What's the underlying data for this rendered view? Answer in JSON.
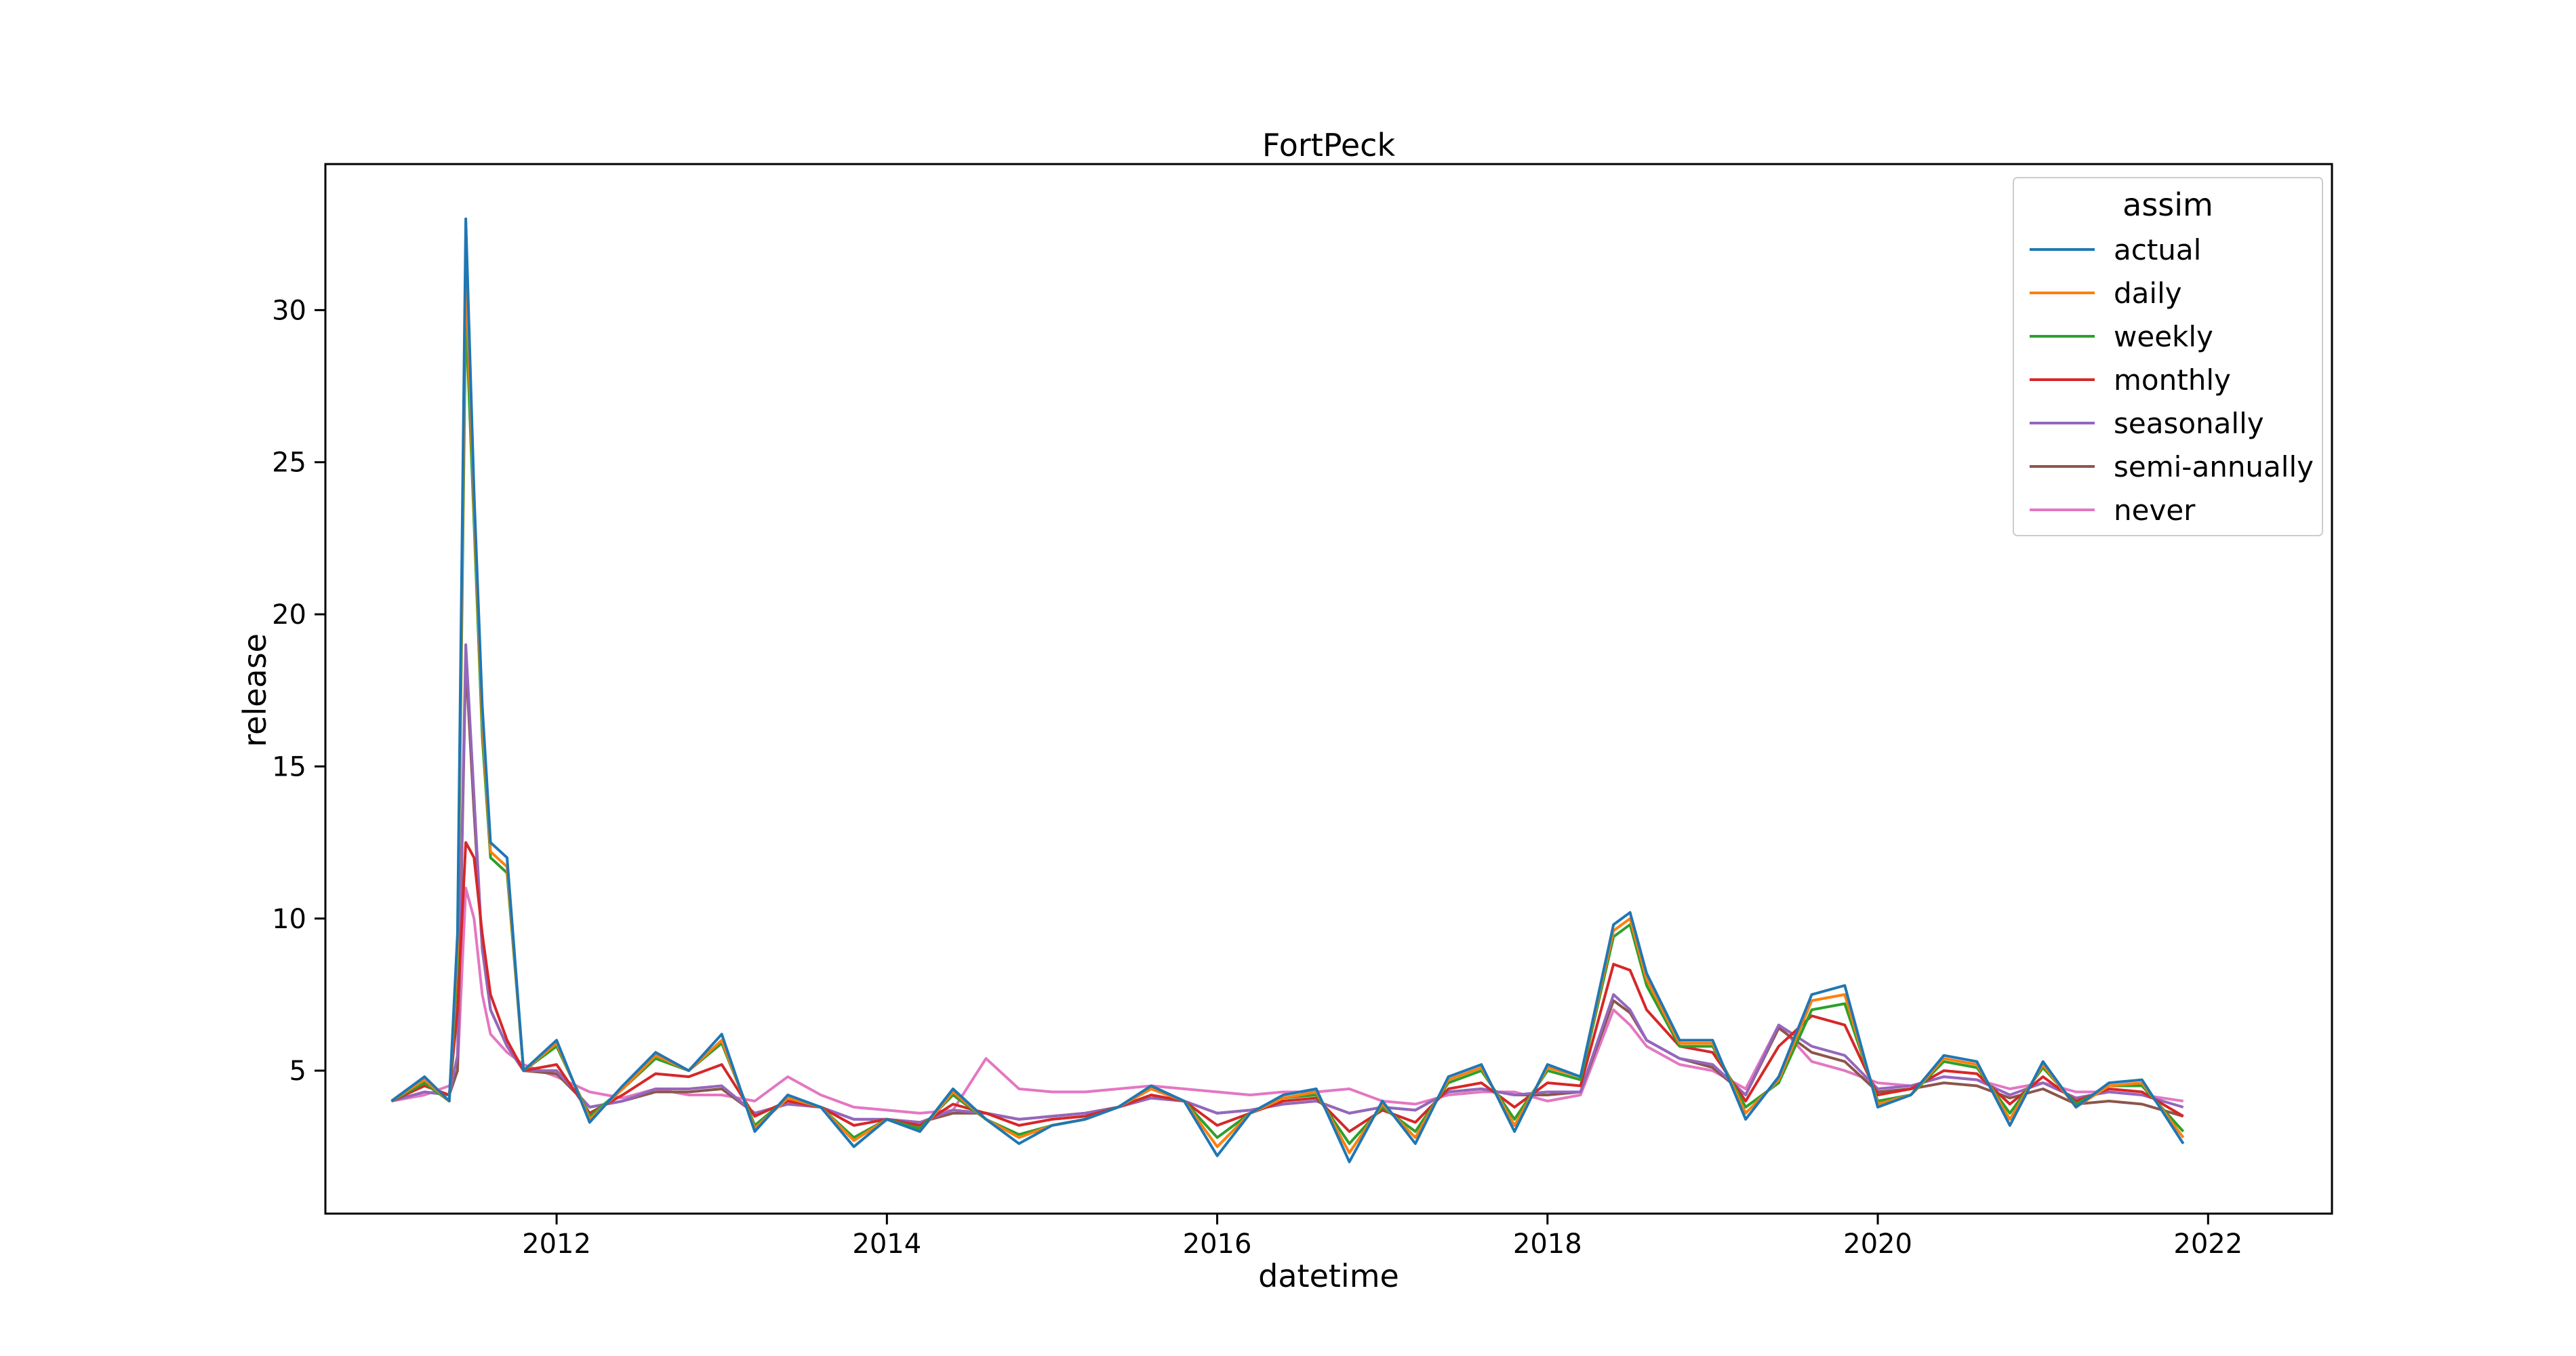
{
  "chart_data": {
    "type": "line",
    "title": "FortPeck",
    "xlabel": "datetime",
    "ylabel": "release",
    "xlim": [
      2010.6,
      2022.75
    ],
    "ylim": [
      0.3,
      34.8
    ],
    "x_ticks": [
      2012,
      2014,
      2016,
      2018,
      2020,
      2022
    ],
    "x_tick_labels": [
      "2012",
      "2014",
      "2016",
      "2018",
      "2020",
      "2022"
    ],
    "y_ticks": [
      5,
      10,
      15,
      20,
      25,
      30
    ],
    "y_tick_labels": [
      "5",
      "10",
      "15",
      "20",
      "25",
      "30"
    ],
    "grid": false,
    "legend": {
      "title": "assim",
      "position": "top-right"
    },
    "x": [
      2011.0,
      2011.2,
      2011.35,
      2011.4,
      2011.45,
      2011.5,
      2011.55,
      2011.6,
      2011.7,
      2011.8,
      2012.0,
      2012.2,
      2012.4,
      2012.6,
      2012.8,
      2013.0,
      2013.2,
      2013.4,
      2013.6,
      2013.8,
      2014.0,
      2014.2,
      2014.4,
      2014.6,
      2014.8,
      2015.0,
      2015.2,
      2015.4,
      2015.6,
      2015.8,
      2016.0,
      2016.2,
      2016.4,
      2016.6,
      2016.8,
      2017.0,
      2017.2,
      2017.4,
      2017.6,
      2017.8,
      2018.0,
      2018.2,
      2018.4,
      2018.5,
      2018.6,
      2018.8,
      2019.0,
      2019.2,
      2019.4,
      2019.6,
      2019.8,
      2020.0,
      2020.2,
      2020.4,
      2020.6,
      2020.8,
      2021.0,
      2021.2,
      2021.4,
      2021.6,
      2021.85
    ],
    "series": [
      {
        "name": "actual",
        "color": "#1f77b4",
        "values": [
          4.0,
          4.8,
          4.0,
          9.5,
          33.0,
          24.0,
          17.0,
          12.5,
          12.0,
          5.0,
          6.0,
          3.3,
          4.5,
          5.6,
          5.0,
          6.2,
          3.0,
          4.2,
          3.8,
          2.5,
          3.4,
          3.0,
          4.4,
          3.4,
          2.6,
          3.2,
          3.4,
          3.8,
          4.5,
          4.0,
          2.2,
          3.6,
          4.2,
          4.4,
          2.0,
          4.0,
          2.6,
          4.8,
          5.2,
          3.0,
          5.2,
          4.8,
          9.8,
          10.2,
          8.2,
          6.0,
          6.0,
          3.4,
          4.8,
          7.5,
          7.8,
          3.8,
          4.2,
          5.5,
          5.3,
          3.2,
          5.3,
          3.8,
          4.6,
          4.7,
          2.6
        ]
      },
      {
        "name": "daily",
        "color": "#ff7f0e",
        "values": [
          4.0,
          4.7,
          4.0,
          9.0,
          31.5,
          23.5,
          16.5,
          12.2,
          11.7,
          5.0,
          5.9,
          3.4,
          4.4,
          5.5,
          5.0,
          6.0,
          3.1,
          4.1,
          3.8,
          2.7,
          3.4,
          3.0,
          4.3,
          3.4,
          2.8,
          3.2,
          3.4,
          3.8,
          4.4,
          4.0,
          2.5,
          3.6,
          4.1,
          4.3,
          2.3,
          3.9,
          2.8,
          4.7,
          5.1,
          3.2,
          5.1,
          4.8,
          9.6,
          10.0,
          8.0,
          5.9,
          5.9,
          3.6,
          4.7,
          7.3,
          7.5,
          3.9,
          4.2,
          5.4,
          5.2,
          3.4,
          5.2,
          3.8,
          4.5,
          4.6,
          2.8
        ]
      },
      {
        "name": "weekly",
        "color": "#2ca02c",
        "values": [
          4.0,
          4.6,
          4.0,
          8.5,
          30.0,
          23.0,
          16.0,
          12.0,
          11.5,
          5.0,
          5.8,
          3.5,
          4.4,
          5.4,
          5.0,
          5.9,
          3.2,
          4.1,
          3.8,
          2.8,
          3.4,
          3.1,
          4.2,
          3.4,
          2.9,
          3.2,
          3.4,
          3.8,
          4.4,
          4.0,
          2.8,
          3.6,
          4.1,
          4.2,
          2.6,
          3.8,
          3.0,
          4.6,
          5.0,
          3.4,
          5.0,
          4.7,
          9.4,
          9.8,
          7.8,
          5.8,
          5.8,
          3.8,
          4.6,
          7.0,
          7.2,
          4.0,
          4.2,
          5.3,
          5.1,
          3.6,
          5.1,
          3.9,
          4.5,
          4.5,
          3.0
        ]
      },
      {
        "name": "monthly",
        "color": "#d62728",
        "values": [
          4.0,
          4.5,
          4.2,
          7.0,
          12.5,
          12.0,
          9.5,
          7.5,
          6.0,
          5.0,
          5.2,
          3.6,
          4.2,
          4.9,
          4.8,
          5.2,
          3.5,
          4.0,
          3.8,
          3.2,
          3.4,
          3.2,
          3.9,
          3.6,
          3.2,
          3.4,
          3.5,
          3.8,
          4.2,
          4.0,
          3.2,
          3.6,
          4.0,
          4.1,
          3.0,
          3.7,
          3.3,
          4.4,
          4.6,
          3.8,
          4.6,
          4.5,
          8.5,
          8.3,
          7.0,
          5.8,
          5.6,
          4.0,
          5.8,
          6.8,
          6.5,
          4.2,
          4.4,
          5.0,
          4.9,
          3.9,
          4.8,
          4.0,
          4.4,
          4.3,
          3.5
        ]
      },
      {
        "name": "seasonally",
        "color": "#9467bd",
        "values": [
          4.0,
          4.3,
          4.2,
          5.5,
          19.0,
          14.0,
          9.0,
          7.0,
          5.8,
          5.0,
          5.0,
          3.8,
          4.0,
          4.4,
          4.4,
          4.5,
          3.6,
          3.9,
          3.8,
          3.4,
          3.4,
          3.3,
          3.7,
          3.6,
          3.4,
          3.5,
          3.6,
          3.8,
          4.1,
          4.0,
          3.6,
          3.7,
          3.9,
          4.0,
          3.6,
          3.8,
          3.7,
          4.3,
          4.4,
          4.2,
          4.3,
          4.3,
          7.5,
          7.0,
          6.0,
          5.4,
          5.2,
          4.2,
          6.5,
          5.8,
          5.5,
          4.4,
          4.5,
          4.8,
          4.7,
          4.2,
          4.6,
          4.1,
          4.3,
          4.2,
          3.8
        ]
      },
      {
        "name": "semi-annually",
        "color": "#8c564b",
        "values": [
          4.0,
          4.3,
          4.2,
          5.0,
          18.5,
          13.5,
          9.0,
          7.0,
          5.8,
          5.0,
          4.9,
          3.8,
          4.0,
          4.3,
          4.3,
          4.4,
          3.6,
          3.9,
          3.8,
          3.4,
          3.4,
          3.3,
          3.6,
          3.6,
          3.4,
          3.5,
          3.6,
          3.8,
          4.1,
          4.0,
          3.6,
          3.7,
          3.9,
          4.0,
          3.6,
          3.8,
          3.7,
          4.3,
          4.4,
          4.2,
          4.2,
          4.3,
          7.3,
          6.9,
          6.0,
          5.4,
          5.1,
          4.2,
          6.4,
          5.6,
          5.3,
          4.3,
          4.4,
          4.6,
          4.5,
          4.1,
          4.4,
          3.9,
          4.0,
          3.9,
          3.5
        ]
      },
      {
        "name": "never",
        "color": "#e377c2",
        "values": [
          4.0,
          4.2,
          4.5,
          5.0,
          11.0,
          10.0,
          7.5,
          6.2,
          5.6,
          5.2,
          4.8,
          4.3,
          4.1,
          4.4,
          4.2,
          4.2,
          4.0,
          4.8,
          4.2,
          3.8,
          3.7,
          3.6,
          3.7,
          5.4,
          4.4,
          4.3,
          4.3,
          4.4,
          4.5,
          4.4,
          4.3,
          4.2,
          4.3,
          4.3,
          4.4,
          4.0,
          3.9,
          4.2,
          4.3,
          4.3,
          4.0,
          4.2,
          7.0,
          6.5,
          5.8,
          5.2,
          5.0,
          4.4,
          6.5,
          5.3,
          5.0,
          4.6,
          4.5,
          4.8,
          4.7,
          4.4,
          4.6,
          4.3,
          4.3,
          4.2,
          4.0
        ]
      }
    ]
  }
}
